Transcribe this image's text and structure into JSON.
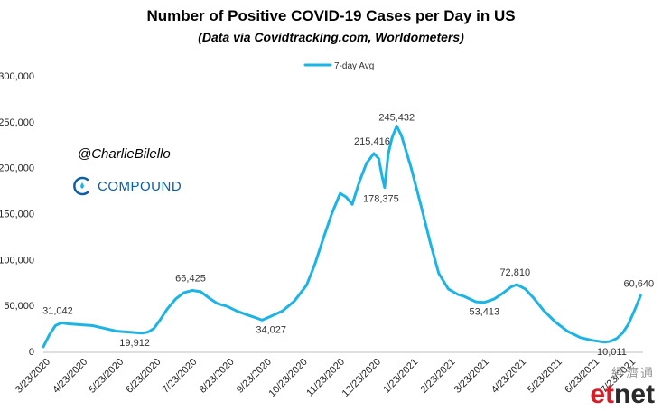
{
  "title": "Number of Positive COVID-19 Cases per Day in US",
  "subtitle": "(Data via Covidtracking.com, Worldometers)",
  "brand": {
    "handle": "@CharlieBilello",
    "company": "COMPOUND",
    "logo_icon": "compound-drop-icon"
  },
  "watermark": {
    "top": "經濟通",
    "et": "et",
    "net": "net"
  },
  "colors": {
    "line": "#1cb4e6",
    "text": "#222222",
    "brand_blue": "#0a5fa8"
  },
  "chart_data": {
    "type": "line",
    "title": "Number of Positive COVID-19 Cases per Day in US",
    "subtitle": "(Data via Covidtracking.com, Worldometers)",
    "xlabel": "",
    "ylabel": "",
    "ylim": [
      0,
      300000
    ],
    "yticks": [
      0,
      50000,
      100000,
      150000,
      200000,
      250000,
      300000
    ],
    "ytick_labels": [
      "0",
      "50,000",
      "100,000",
      "150,000",
      "200,000",
      "250,000",
      "300,000"
    ],
    "xtick_labels": [
      "3/23/2020",
      "4/23/2020",
      "5/23/2020",
      "6/23/2020",
      "7/23/2020",
      "8/23/2020",
      "9/23/2020",
      "10/23/2020",
      "11/23/2020",
      "12/23/2020",
      "1/23/2021",
      "2/23/2021",
      "3/23/2021",
      "4/23/2021",
      "5/23/2021",
      "6/23/2021",
      "7/23/2021"
    ],
    "grid": false,
    "legend_position": "top-center",
    "series": [
      {
        "name": "7-day Avg",
        "x": [
          "3/20/2020",
          "3/25/2020",
          "3/30/2020",
          "4/4/2020",
          "4/10/2020",
          "4/20/2020",
          "4/30/2020",
          "5/10/2020",
          "5/20/2020",
          "5/30/2020",
          "6/5/2020",
          "6/10/2020",
          "6/15/2020",
          "6/20/2020",
          "6/25/2020",
          "7/1/2020",
          "7/8/2020",
          "7/15/2020",
          "7/22/2020",
          "7/29/2020",
          "8/5/2020",
          "8/12/2020",
          "8/20/2020",
          "8/28/2020",
          "9/5/2020",
          "9/12/2020",
          "9/18/2020",
          "9/25/2020",
          "10/5/2020",
          "10/15/2020",
          "10/25/2020",
          "11/1/2020",
          "11/8/2020",
          "11/15/2020",
          "11/22/2020",
          "11/27/2020",
          "12/2/2020",
          "12/8/2020",
          "12/14/2020",
          "12/20/2020",
          "12/24/2020",
          "12/27/2020",
          "12/29/2020",
          "1/1/2021",
          "1/4/2021",
          "1/8/2021",
          "1/12/2021",
          "1/20/2021",
          "1/28/2021",
          "2/5/2021",
          "2/12/2021",
          "2/20/2021",
          "2/28/2021",
          "3/5/2021",
          "3/15/2021",
          "3/22/2021",
          "3/30/2021",
          "4/6/2021",
          "4/13/2021",
          "4/18/2021",
          "4/25/2021",
          "5/2/2021",
          "5/10/2021",
          "5/20/2021",
          "5/30/2021",
          "6/10/2021",
          "6/20/2021",
          "6/30/2021",
          "7/5/2021",
          "7/10/2021",
          "7/15/2021",
          "7/20/2021",
          "7/25/2021",
          "7/30/2021"
        ],
        "values": [
          5000,
          18000,
          28000,
          31042,
          30000,
          29000,
          28000,
          25000,
          22000,
          21000,
          20500,
          19912,
          21000,
          25000,
          34000,
          46000,
          57000,
          64000,
          66425,
          65000,
          58000,
          52000,
          49000,
          44000,
          40000,
          37000,
          34027,
          38000,
          44000,
          55000,
          72000,
          95000,
          123000,
          150000,
          172000,
          168000,
          160000,
          185000,
          205000,
          215416,
          210000,
          190000,
          178375,
          215000,
          232000,
          245432,
          235000,
          200000,
          160000,
          118000,
          85000,
          68000,
          62000,
          60000,
          54000,
          53413,
          57000,
          63000,
          70000,
          72810,
          68000,
          58000,
          45000,
          32000,
          22000,
          15000,
          12000,
          10011,
          11000,
          14000,
          20000,
          30000,
          45000,
          60640
        ]
      }
    ],
    "annotations": [
      {
        "x": "4/4/2020",
        "y": 31042,
        "text": "31,042"
      },
      {
        "x": "6/10/2020",
        "y": 19912,
        "text": "19,912"
      },
      {
        "x": "7/22/2020",
        "y": 66425,
        "text": "66,425"
      },
      {
        "x": "9/18/2020",
        "y": 34027,
        "text": "34,027"
      },
      {
        "x": "12/20/2020",
        "y": 215416,
        "text": "215,416"
      },
      {
        "x": "12/29/2020",
        "y": 178375,
        "text": "178,375"
      },
      {
        "x": "1/8/2021",
        "y": 245432,
        "text": "245,432"
      },
      {
        "x": "3/22/2021",
        "y": 53413,
        "text": "53,413"
      },
      {
        "x": "4/18/2021",
        "y": 72810,
        "text": "72,810"
      },
      {
        "x": "6/30/2021",
        "y": 10011,
        "text": "10,011"
      },
      {
        "x": "7/30/2021",
        "y": 60640,
        "text": "60,640"
      }
    ]
  }
}
